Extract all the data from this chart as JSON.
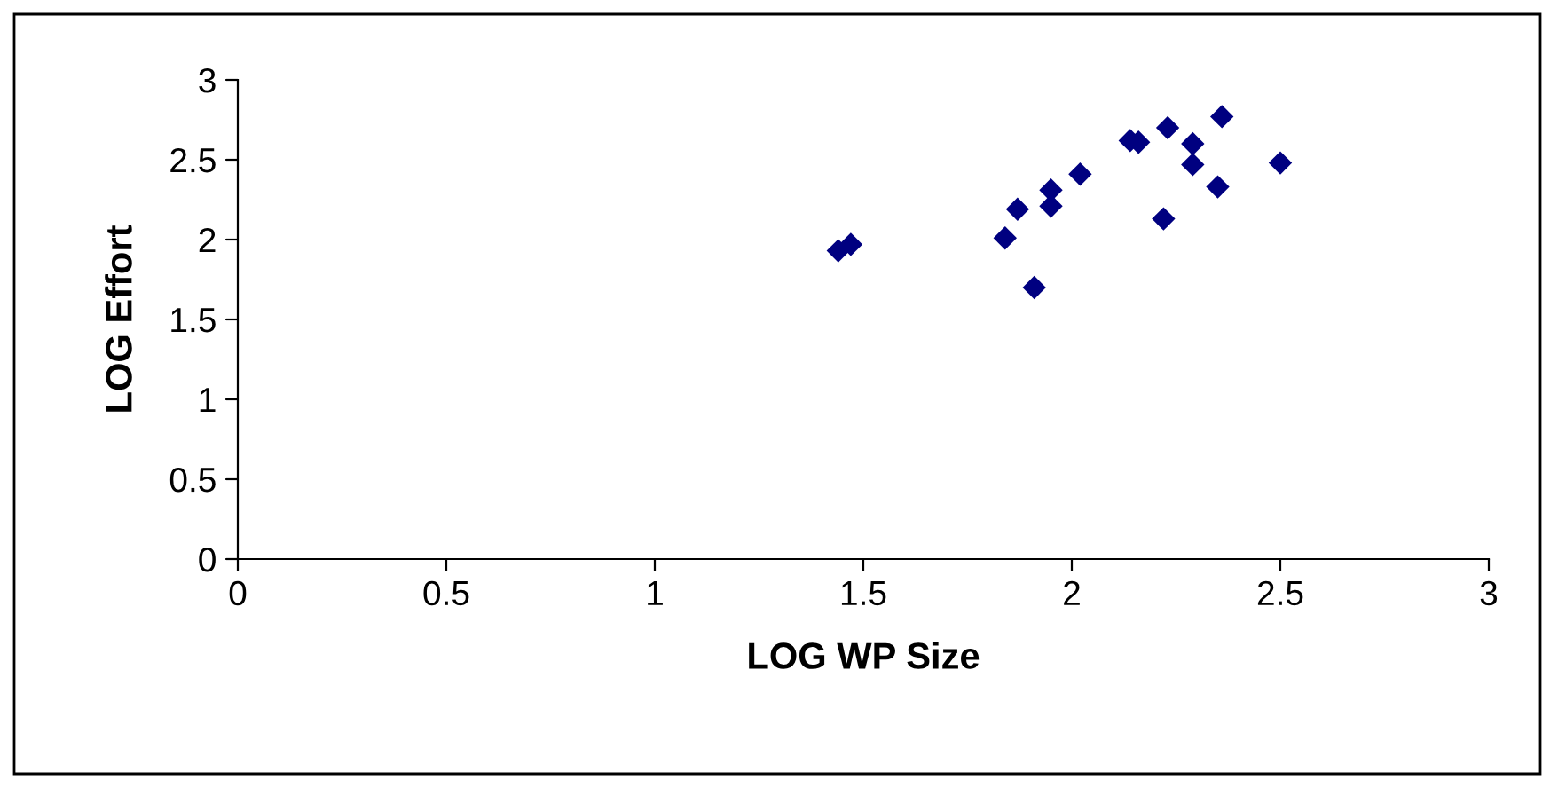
{
  "chart_data": {
    "type": "scatter",
    "xlabel": "LOG WP Size",
    "ylabel": "LOG Effort",
    "x": [
      1.44,
      1.47,
      1.84,
      1.87,
      1.91,
      1.95,
      1.95,
      2.02,
      2.14,
      2.16,
      2.22,
      2.23,
      2.29,
      2.29,
      2.35,
      2.36,
      2.5
    ],
    "values": [
      1.93,
      1.97,
      2.01,
      2.19,
      1.7,
      2.31,
      2.21,
      2.41,
      2.62,
      2.61,
      2.13,
      2.7,
      2.6,
      2.47,
      2.33,
      2.77,
      2.48
    ],
    "color": "#000080",
    "marker": "diamond",
    "xlim": [
      0,
      3
    ],
    "xticks": [
      0,
      0.5,
      1,
      1.5,
      2,
      2.5,
      3
    ],
    "ylim": [
      0,
      3
    ],
    "yticks": [
      0,
      0.5,
      1,
      1.5,
      2,
      2.5,
      3
    ],
    "grid": false,
    "legend": false
  }
}
